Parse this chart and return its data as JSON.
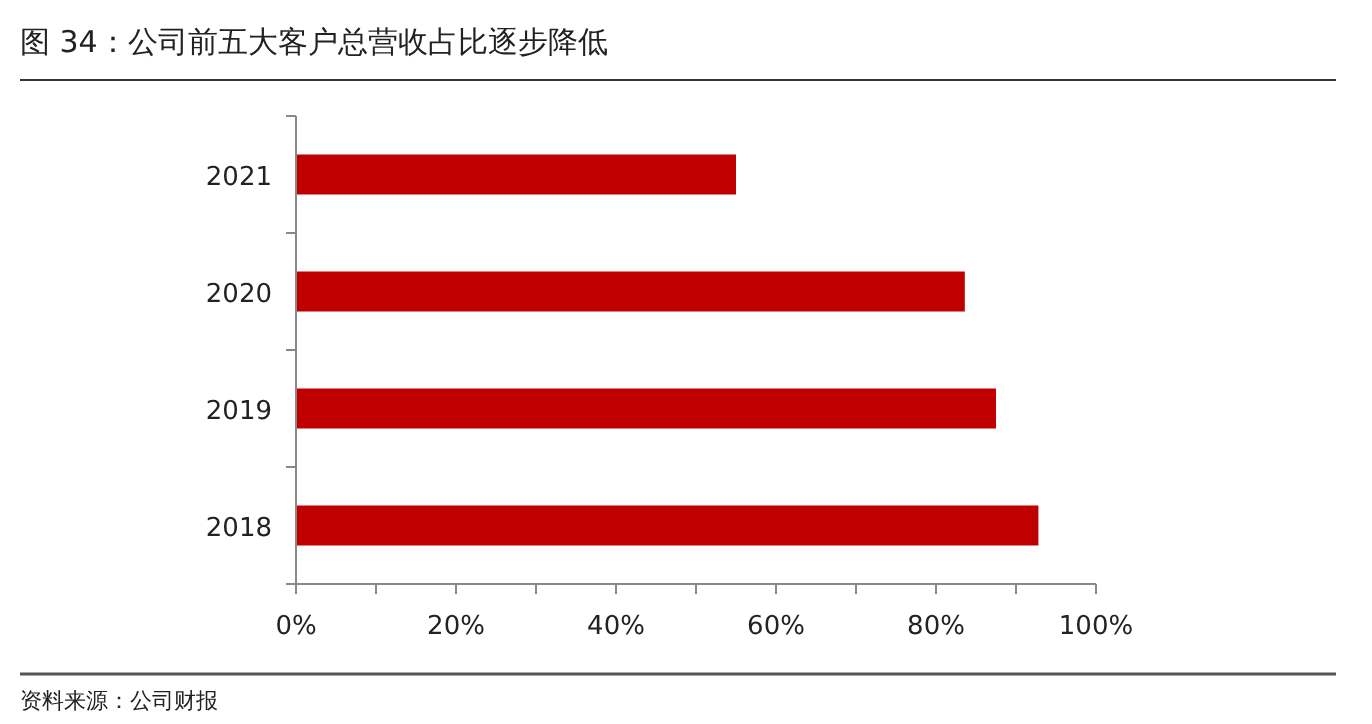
{
  "chart_data": {
    "type": "bar",
    "orientation": "horizontal",
    "title": "图 34：公司前五大客户总营收占比逐步降低",
    "categories": [
      "2021",
      "2020",
      "2019",
      "2018"
    ],
    "values": [
      55,
      83.6,
      87.5,
      92.8
    ],
    "color": "#c00000",
    "xlim": [
      0,
      100
    ],
    "xticks": [
      {
        "value": 0,
        "label": "0%"
      },
      {
        "value": 10,
        "label": null
      },
      {
        "value": 20,
        "label": "20%"
      },
      {
        "value": 30,
        "label": null
      },
      {
        "value": 40,
        "label": "40%"
      },
      {
        "value": 50,
        "label": null
      },
      {
        "value": 60,
        "label": "60%"
      },
      {
        "value": 70,
        "label": null
      },
      {
        "value": 80,
        "label": "80%"
      },
      {
        "value": 90,
        "label": null
      },
      {
        "value": 100,
        "label": "100%"
      }
    ],
    "grid": false,
    "annotations": [
      "资料来源：公司财报"
    ]
  }
}
